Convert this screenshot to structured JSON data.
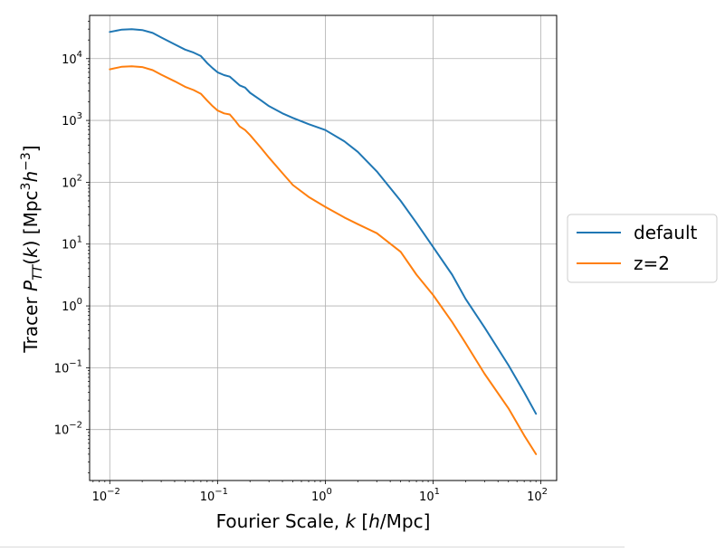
{
  "chart_data": {
    "type": "line",
    "xlabel": {
      "prefix": "Fourier Scale, ",
      "var": "k",
      "unit_open": " [",
      "unit_var": "h",
      "unit_rest": "/Mpc]"
    },
    "ylabel": {
      "prefix": "Tracer ",
      "var": "P",
      "sub": "TT",
      "arg_open": "(",
      "arg_var": "k",
      "arg_close": ")",
      "unit_open": " [Mpc",
      "sup1": "3",
      "unit_var": "h",
      "sup2": "−3",
      "unit_close": "]"
    },
    "xscale": "log",
    "yscale": "log",
    "xlim": [
      0.0065,
      140
    ],
    "ylim": [
      0.0015,
      50000
    ],
    "grid": true,
    "legend": "outside-right",
    "xticks": [
      {
        "value": 0.01,
        "base": "10",
        "exp": "−2"
      },
      {
        "value": 0.1,
        "base": "10",
        "exp": "−1"
      },
      {
        "value": 1,
        "base": "10",
        "exp": "0"
      },
      {
        "value": 10,
        "base": "10",
        "exp": "1"
      },
      {
        "value": 100,
        "base": "10",
        "exp": "2"
      }
    ],
    "yticks": [
      {
        "value": 0.01,
        "base": "10",
        "exp": "−2"
      },
      {
        "value": 0.1,
        "base": "10",
        "exp": "−1"
      },
      {
        "value": 1,
        "base": "10",
        "exp": "0"
      },
      {
        "value": 10,
        "base": "10",
        "exp": "1"
      },
      {
        "value": 100,
        "base": "10",
        "exp": "2"
      },
      {
        "value": 1000,
        "base": "10",
        "exp": "3"
      },
      {
        "value": 10000,
        "base": "10",
        "exp": "4"
      }
    ],
    "series": [
      {
        "name": "default",
        "color": "#1f77b4",
        "x": [
          0.01,
          0.013,
          0.016,
          0.02,
          0.025,
          0.03,
          0.04,
          0.05,
          0.06,
          0.07,
          0.08,
          0.09,
          0.1,
          0.115,
          0.13,
          0.145,
          0.16,
          0.18,
          0.2,
          0.25,
          0.3,
          0.4,
          0.5,
          0.7,
          1.0,
          1.5,
          2,
          3,
          5,
          7,
          10,
          15,
          20,
          30,
          50,
          70,
          90
        ],
        "y": [
          27000,
          29500,
          30000,
          29000,
          26000,
          22000,
          17000,
          14000,
          12500,
          11000,
          8500,
          7000,
          6000,
          5400,
          5100,
          4300,
          3700,
          3400,
          2800,
          2150,
          1700,
          1300,
          1100,
          870,
          700,
          460,
          310,
          150,
          50,
          22,
          9,
          3.2,
          1.3,
          0.45,
          0.11,
          0.04,
          0.018
        ]
      },
      {
        "name": "z=2",
        "color": "#ff7f0e",
        "x": [
          0.01,
          0.013,
          0.016,
          0.02,
          0.025,
          0.03,
          0.04,
          0.05,
          0.06,
          0.07,
          0.08,
          0.09,
          0.1,
          0.115,
          0.13,
          0.145,
          0.16,
          0.18,
          0.2,
          0.25,
          0.3,
          0.4,
          0.5,
          0.7,
          1.0,
          1.5,
          2,
          3,
          5,
          7,
          10,
          15,
          20,
          30,
          50,
          70,
          90
        ],
        "y": [
          6700,
          7400,
          7500,
          7300,
          6500,
          5500,
          4300,
          3500,
          3100,
          2700,
          2100,
          1700,
          1450,
          1300,
          1250,
          1000,
          800,
          700,
          580,
          370,
          250,
          140,
          90,
          58,
          40,
          27,
          21,
          15,
          7.5,
          3.2,
          1.5,
          0.55,
          0.25,
          0.08,
          0.022,
          0.008,
          0.004
        ]
      }
    ]
  }
}
